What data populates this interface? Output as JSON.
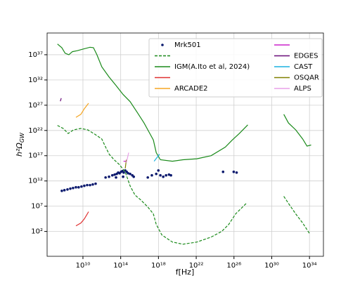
{
  "chart_data": {
    "type": "line",
    "xlabel": "f[Hz]",
    "ylabel": "h²ΩGW",
    "log_x": true,
    "log_y": true,
    "grid": true,
    "legend": "upper right",
    "xlim": [
      1600000.0,
      3e+35
    ],
    "ylim": [
      0.0012,
      2e+41
    ],
    "xticks": [
      {
        "value": 10000000000.0,
        "label": "10¹⁰"
      },
      {
        "value": 100000000000000.0,
        "label": "10¹⁴"
      },
      {
        "value": 1e+18,
        "label": "10¹⁸"
      },
      {
        "value": 1e+22,
        "label": "10²²"
      },
      {
        "value": 1e+26,
        "label": "10²⁶"
      },
      {
        "value": 1e+30,
        "label": "10³⁰"
      },
      {
        "value": 1e+34,
        "label": "10³⁴"
      }
    ],
    "yticks": [
      {
        "value": 100.0,
        "label": "10²"
      },
      {
        "value": 10000000.0,
        "label": "10⁷"
      },
      {
        "value": 1000000000000.0,
        "label": "10¹²"
      },
      {
        "value": 1e+17,
        "label": "10¹⁷"
      },
      {
        "value": 1e+22,
        "label": "10²²"
      },
      {
        "value": 1e+27,
        "label": "10²⁷"
      },
      {
        "value": 1e+32,
        "label": "10³²"
      },
      {
        "value": 1e+37,
        "label": "10³⁷"
      }
    ],
    "series": [
      {
        "name": "Mrk501",
        "kind": "scatter",
        "color": "#0b1a6e",
        "x": [
          58000000.0,
          110000000.0,
          230000000.0,
          460000000.0,
          900000000.0,
          1800000000.0,
          3500000000.0,
          7000000000.0,
          14000000000.0,
          28000000000.0,
          56000000000.0,
          110000000000.0,
          220000000000.0,
          2500000000000.0,
          5800000000000.0,
          13000000000000.0,
          23000000000000.0,
          38000000000000.0,
          54000000000000.0,
          76000000000000.0,
          110000000000000.0,
          150000000000000.0,
          210000000000000.0,
          300000000000000.0,
          430000000000000.0,
          600000000000000.0,
          1000000000000000.0,
          1700000000000000.0,
          2400000000000000.0,
          180000000000000.0,
          32000000000000.0,
          7.4e+16,
          2e+17,
          5.8e+17,
          9.8e+17,
          1.6e+18,
          3.2e+18,
          6.4e+18,
          1.3e+19,
          2.1e+19,
          7e+24,
          9.4e+25,
          1.9e+26
        ],
        "y": [
          11000000000.0,
          15000000000.0,
          21000000000.0,
          30000000000.0,
          40000000000.0,
          56000000000.0,
          56000000000.0,
          78000000000.0,
          110000000000.0,
          150000000000.0,
          150000000000.0,
          200000000000.0,
          280000000000.0,
          4900000000000.0,
          6800000000000.0,
          13000000000000.0,
          18000000000000.0,
          25000000000000.0,
          46000000000000.0,
          34000000000000.0,
          64000000000000.0,
          88000000000000.0,
          46000000000000.0,
          120000000000000.0,
          64000000000000.0,
          34000000000000.0,
          25000000000000.0,
          13000000000000.0,
          6800000000000.0,
          6800000000000.0,
          4900000000000.0,
          4900000000000.0,
          13000000000000.0,
          25000000000000.0,
          120000000000000.0,
          13000000000000.0,
          6800000000000.0,
          13000000000000.0,
          18000000000000.0,
          13000000000000.0,
          64000000000000.0,
          64000000000000.0,
          46000000000000.0
        ]
      },
      {
        "kind": "line",
        "dash": true,
        "color": "#1a8a1a",
        "x": [
          20000000.0,
          80000000.0,
          270000000.0,
          1000000000.0,
          6000000000.0,
          33000000000.0,
          200000000000.0,
          1000000000000.0,
          2500000000000.0,
          6000000000000.0,
          20000000000000.0,
          76000000000000.0,
          300000000000000.0,
          1000000000000000.0,
          3300000000000000.0,
          1.3e+16,
          7.4e+16,
          2.9e+17,
          5.8e+17,
          2.3e+18,
          3e+19,
          4e+20,
          1.2e+22,
          3.8e+23,
          5e+24,
          2.8e+25,
          1.5e+26,
          2e+27,
          null,
          1.9e+31,
          6e+31,
          3.5e+32,
          1.9e+33,
          1e+34
        ],
        "y": [
          1e+23,
          2.5e+22,
          2.5e+21,
          1.3e+22,
          2.5e+22,
          1.3e+22,
          1.6e+21,
          2e+20,
          5e+18,
          2e+17,
          1.6e+16,
          1600000000000000.0,
          60000000000000.0,
          100000000000.0,
          1600000000.0,
          180000000.0,
          7000000.0,
          300000.0,
          2500.0,
          20,
          0.8,
          0.3,
          0.8,
          7.8,
          100,
          2500.0,
          300000.0,
          36000000.0,
          null,
          900000000.0,
          36000000.0,
          300000.0,
          4700.0,
          38
        ]
      },
      {
        "name": "IGM(A.Ito et al, 2024)",
        "kind": "line",
        "color": "#1a8a1a",
        "x": [
          20000000.0,
          58000000.0,
          130000000.0,
          320000000.0,
          760000000.0,
          2500000000.0,
          10000000000.0,
          56000000000.0,
          130000000000.0,
          300000000000.0,
          1000000000000.0,
          5800000000000.0,
          32000000000000.0,
          180000000000000.0,
          1000000000000000.0,
          5600000000000000.0,
          3e+16,
          1e+17,
          2.9e+17,
          5.8e+17,
          1.6e+18,
          3e+19,
          4e+20,
          1.2e+22,
          3.8e+23,
          1.2e+25,
          6.6e+25,
          3.7e+26,
          2.9e+27,
          null,
          1.9e+31,
          6e+31,
          3.5e+32,
          1.9e+33,
          5.4e+33,
          1.5e+34
        ],
        "y": [
          1.3e+39,
          2.5e+38,
          2e+37,
          1e+37,
          4e+37,
          6.3e+37,
          1.3e+38,
          3e+38,
          2.5e+38,
          1e+37,
          4e+34,
          4e+32,
          8e+30,
          1.3e+29,
          5e+27,
          4e+25,
          3e+23,
          5e+21,
          1.3e+20,
          4e+17,
          1.6e+16,
          8000000000000000.0,
          1.6e+16,
          2.5e+16,
          1e+17,
          5e+18,
          1.3e+20,
          2.5e+21,
          1.3e+23,
          null,
          1.6e+25,
          3e+23,
          1.3e+22,
          2e+20,
          8e+18,
          1.3e+19
        ]
      },
      {
        "kind": "line",
        "color": "#e03030",
        "x": [
          1800000000.0,
          6000000000.0,
          14000000000.0,
          40000000000.0
        ],
        "y": [
          1300.0,
          4700.0,
          30000.0,
          800000.0
        ]
      },
      {
        "name": "ARCADE2",
        "kind": "line",
        "color": "#f5a623",
        "x": [
          1800000000.0,
          6000000000.0,
          14000000000.0,
          40000000000.0
        ],
        "y": [
          4e+24,
          1.6e+25,
          2e+26,
          2.5e+27
        ]
      },
      {
        "kind": "line",
        "color": "#cc22cc",
        "x": [
          200000000000000.0,
          400000000000000.0
        ],
        "y": [
          8000000000000000.0,
          8000000000000000.0
        ]
      },
      {
        "name": "EDGES",
        "kind": "line",
        "color": "#6a0d7a",
        "x": [
          40000000.0,
          50000000.0
        ],
        "y": [
          6e+27,
          2.5e+28
        ]
      },
      {
        "name": "CAST",
        "kind": "line",
        "color": "#1ab0e0",
        "x": [
          3.5e+17,
          1.3e+18
        ],
        "y": [
          8000000000000000.0,
          2e+17
        ]
      },
      {
        "name": "OSQAR",
        "kind": "line",
        "color": "#808000",
        "x": [
          300000000000000.0,
          400000000000000.0
        ],
        "y": [
          300000000000000.0,
          1.6e+16
        ]
      },
      {
        "name": "ALPS",
        "kind": "line",
        "color": "#e8a0e8",
        "x": [
          400000000000000.0,
          700000000000000.0
        ],
        "y": [
          4000000000000000.0,
          4e+17
        ]
      }
    ]
  }
}
